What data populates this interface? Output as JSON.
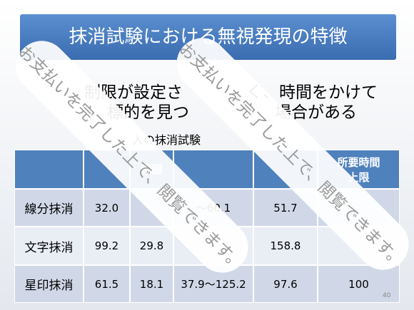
{
  "title": "抹消試験における無視発現の特徴",
  "bullets": [
    {
      "left": "制限が設定さ",
      "right": "く、時間をかけて"
    },
    {
      "left": "標的を見つ",
      "right": "場合がある"
    }
  ],
  "caption": "人の抹消試験",
  "table": {
    "header": {
      "c2": "範囲",
      "c5a": "所要時間",
      "c5b": "上限"
    },
    "rows": [
      {
        "label": "線分抹消",
        "c1": "32.0",
        "c3": "～60.1",
        "c4": "51.7"
      },
      {
        "label": "文字抹消",
        "c1": "99.2",
        "c2": "29.8",
        "c4": "158.8"
      },
      {
        "label": "星印抹消",
        "c1": "61.5",
        "c2": "18.1",
        "c3": "37.9～125.2",
        "c4": "97.6",
        "c5": "100"
      }
    ]
  },
  "page_number": "40",
  "watermark": "お支払いを完了した上で、閲覧できます。"
}
